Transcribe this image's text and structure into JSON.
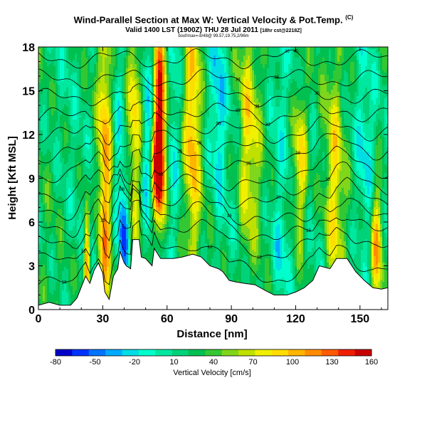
{
  "title": "Wind-Parallel Section at Max W: Vertical Velocity & Pot.Temp.",
  "title_mark": "(C)",
  "subtitle_main": "Valid 1400 LST (1900Z) THU 28 Jul 2011",
  "subtitle_extra": "[18hr cst@2218Z]",
  "info_line": "boxf/max=-8/48@ 99.57,19.75,2/96m",
  "chart_data": {
    "type": "heatmap",
    "title": "Wind-Parallel Section at Max W: Vertical Velocity & Pot.Temp.",
    "xlabel": "Distance [nm]",
    "ylabel": "Height [Kft MSL]",
    "xlim": [
      0,
      163
    ],
    "ylim": [
      0,
      18
    ],
    "x_ticks": [
      0,
      30,
      60,
      90,
      120,
      150
    ],
    "y_ticks": [
      0,
      3,
      6,
      9,
      12,
      15,
      18
    ],
    "colorbar": {
      "label": "Vertical Velocity [cm/s]",
      "ticks": [
        -80,
        -50,
        -20,
        10,
        40,
        70,
        100,
        130,
        160
      ],
      "colors": [
        "#0000c8",
        "#0033ff",
        "#0073ff",
        "#00aaff",
        "#00dde5",
        "#00ffcc",
        "#00e8a0",
        "#00d27a",
        "#00c050",
        "#33c833",
        "#7fd61b",
        "#c0e000",
        "#f0f000",
        "#ffdd00",
        "#ffb400",
        "#ff8c00",
        "#ff5a00",
        "#f01e00",
        "#c80000"
      ],
      "range": [
        -80,
        160
      ]
    },
    "terrain_kft": [
      [
        0,
        0.3
      ],
      [
        5,
        0.5
      ],
      [
        10,
        0.3
      ],
      [
        15,
        0.3
      ],
      [
        18,
        0.8
      ],
      [
        22,
        2.3
      ],
      [
        24,
        1.8
      ],
      [
        26,
        2.7
      ],
      [
        28,
        3.2
      ],
      [
        30,
        2.5
      ],
      [
        31,
        1.2
      ],
      [
        33,
        0.7
      ],
      [
        35,
        2.3
      ],
      [
        37,
        2.8
      ],
      [
        38,
        4.0
      ],
      [
        40,
        3.2
      ],
      [
        41,
        3.0
      ],
      [
        43,
        2.8
      ],
      [
        44,
        4.8
      ],
      [
        47,
        4.8
      ],
      [
        48,
        3.6
      ],
      [
        50,
        3.5
      ],
      [
        53,
        3.0
      ],
      [
        54,
        4.2
      ],
      [
        57,
        3.5
      ],
      [
        63,
        3.5
      ],
      [
        67,
        3.6
      ],
      [
        72,
        3.8
      ],
      [
        76,
        3.6
      ],
      [
        80,
        3.0
      ],
      [
        84,
        2.8
      ],
      [
        86,
        2.6
      ],
      [
        89,
        2.0
      ],
      [
        92,
        1.9
      ],
      [
        96,
        1.8
      ],
      [
        101,
        1.7
      ],
      [
        106,
        1.3
      ],
      [
        110,
        1.0
      ],
      [
        116,
        1.0
      ],
      [
        120,
        1.2
      ],
      [
        124,
        1.5
      ],
      [
        128,
        2.0
      ],
      [
        131,
        3.0
      ],
      [
        136,
        2.8
      ],
      [
        139,
        3.5
      ],
      [
        144,
        3.5
      ],
      [
        148,
        2.6
      ],
      [
        152,
        2.0
      ],
      [
        156,
        1.5
      ],
      [
        160,
        1.4
      ],
      [
        163,
        1.5
      ]
    ],
    "velocity_features": [
      {
        "x": 24,
        "h": 4.8,
        "w": -80,
        "sx": 1.2,
        "sh": 2.2
      },
      {
        "x": 23,
        "h": 3.8,
        "w": 140,
        "sx": 1.3,
        "sh": 2.5
      },
      {
        "x": 31,
        "h": 7,
        "w": 90,
        "sx": 2.2,
        "sh": 9
      },
      {
        "x": 40,
        "h": 5.5,
        "w": -80,
        "sx": 1.8,
        "sh": 2.5
      },
      {
        "x": 37,
        "h": 11,
        "w": -30,
        "sx": 2.5,
        "sh": 6
      },
      {
        "x": 45,
        "h": 13,
        "w": 70,
        "sx": 2.5,
        "sh": 6
      },
      {
        "x": 51,
        "h": 11,
        "w": -40,
        "sx": 2.5,
        "sh": 5
      },
      {
        "x": 56,
        "h": 9.5,
        "w": 150,
        "sx": 2.2,
        "sh": 3
      },
      {
        "x": 57,
        "h": 15,
        "w": 110,
        "sx": 2.2,
        "sh": 4
      },
      {
        "x": 62,
        "h": 14,
        "w": -40,
        "sx": 2.5,
        "sh": 6
      },
      {
        "x": 72,
        "h": 13,
        "w": 80,
        "sx": 2.5,
        "sh": 7
      },
      {
        "x": 84,
        "h": 14,
        "w": -40,
        "sx": 2.5,
        "sh": 5
      },
      {
        "x": 98,
        "h": 11,
        "w": 60,
        "sx": 3.5,
        "sh": 6
      },
      {
        "x": 112,
        "h": 11,
        "w": -20,
        "sx": 3.5,
        "sh": 6
      },
      {
        "x": 113,
        "h": 3.5,
        "w": -30,
        "sx": 3.5,
        "sh": 2.5
      },
      {
        "x": 122,
        "h": 10,
        "w": 70,
        "sx": 2.5,
        "sh": 4
      },
      {
        "x": 138,
        "h": 8,
        "w": 60,
        "sx": 3,
        "sh": 6
      },
      {
        "x": 152,
        "h": 10,
        "w": -30,
        "sx": 3,
        "sh": 5
      },
      {
        "x": 158,
        "h": 4.5,
        "w": 90,
        "sx": 2,
        "sh": 3
      }
    ],
    "theta_contour_base_kft": [
      1.7,
      3.3,
      4.5,
      5.6,
      6.8,
      8.0,
      9.3,
      10.6,
      11.9,
      13.2,
      14.5,
      15.8,
      17.2
    ],
    "theta_contour_labels": [
      "10",
      "13",
      "15",
      "18",
      "20",
      "23",
      "25",
      "28",
      "30",
      "33",
      "35",
      "38",
      "40"
    ]
  }
}
